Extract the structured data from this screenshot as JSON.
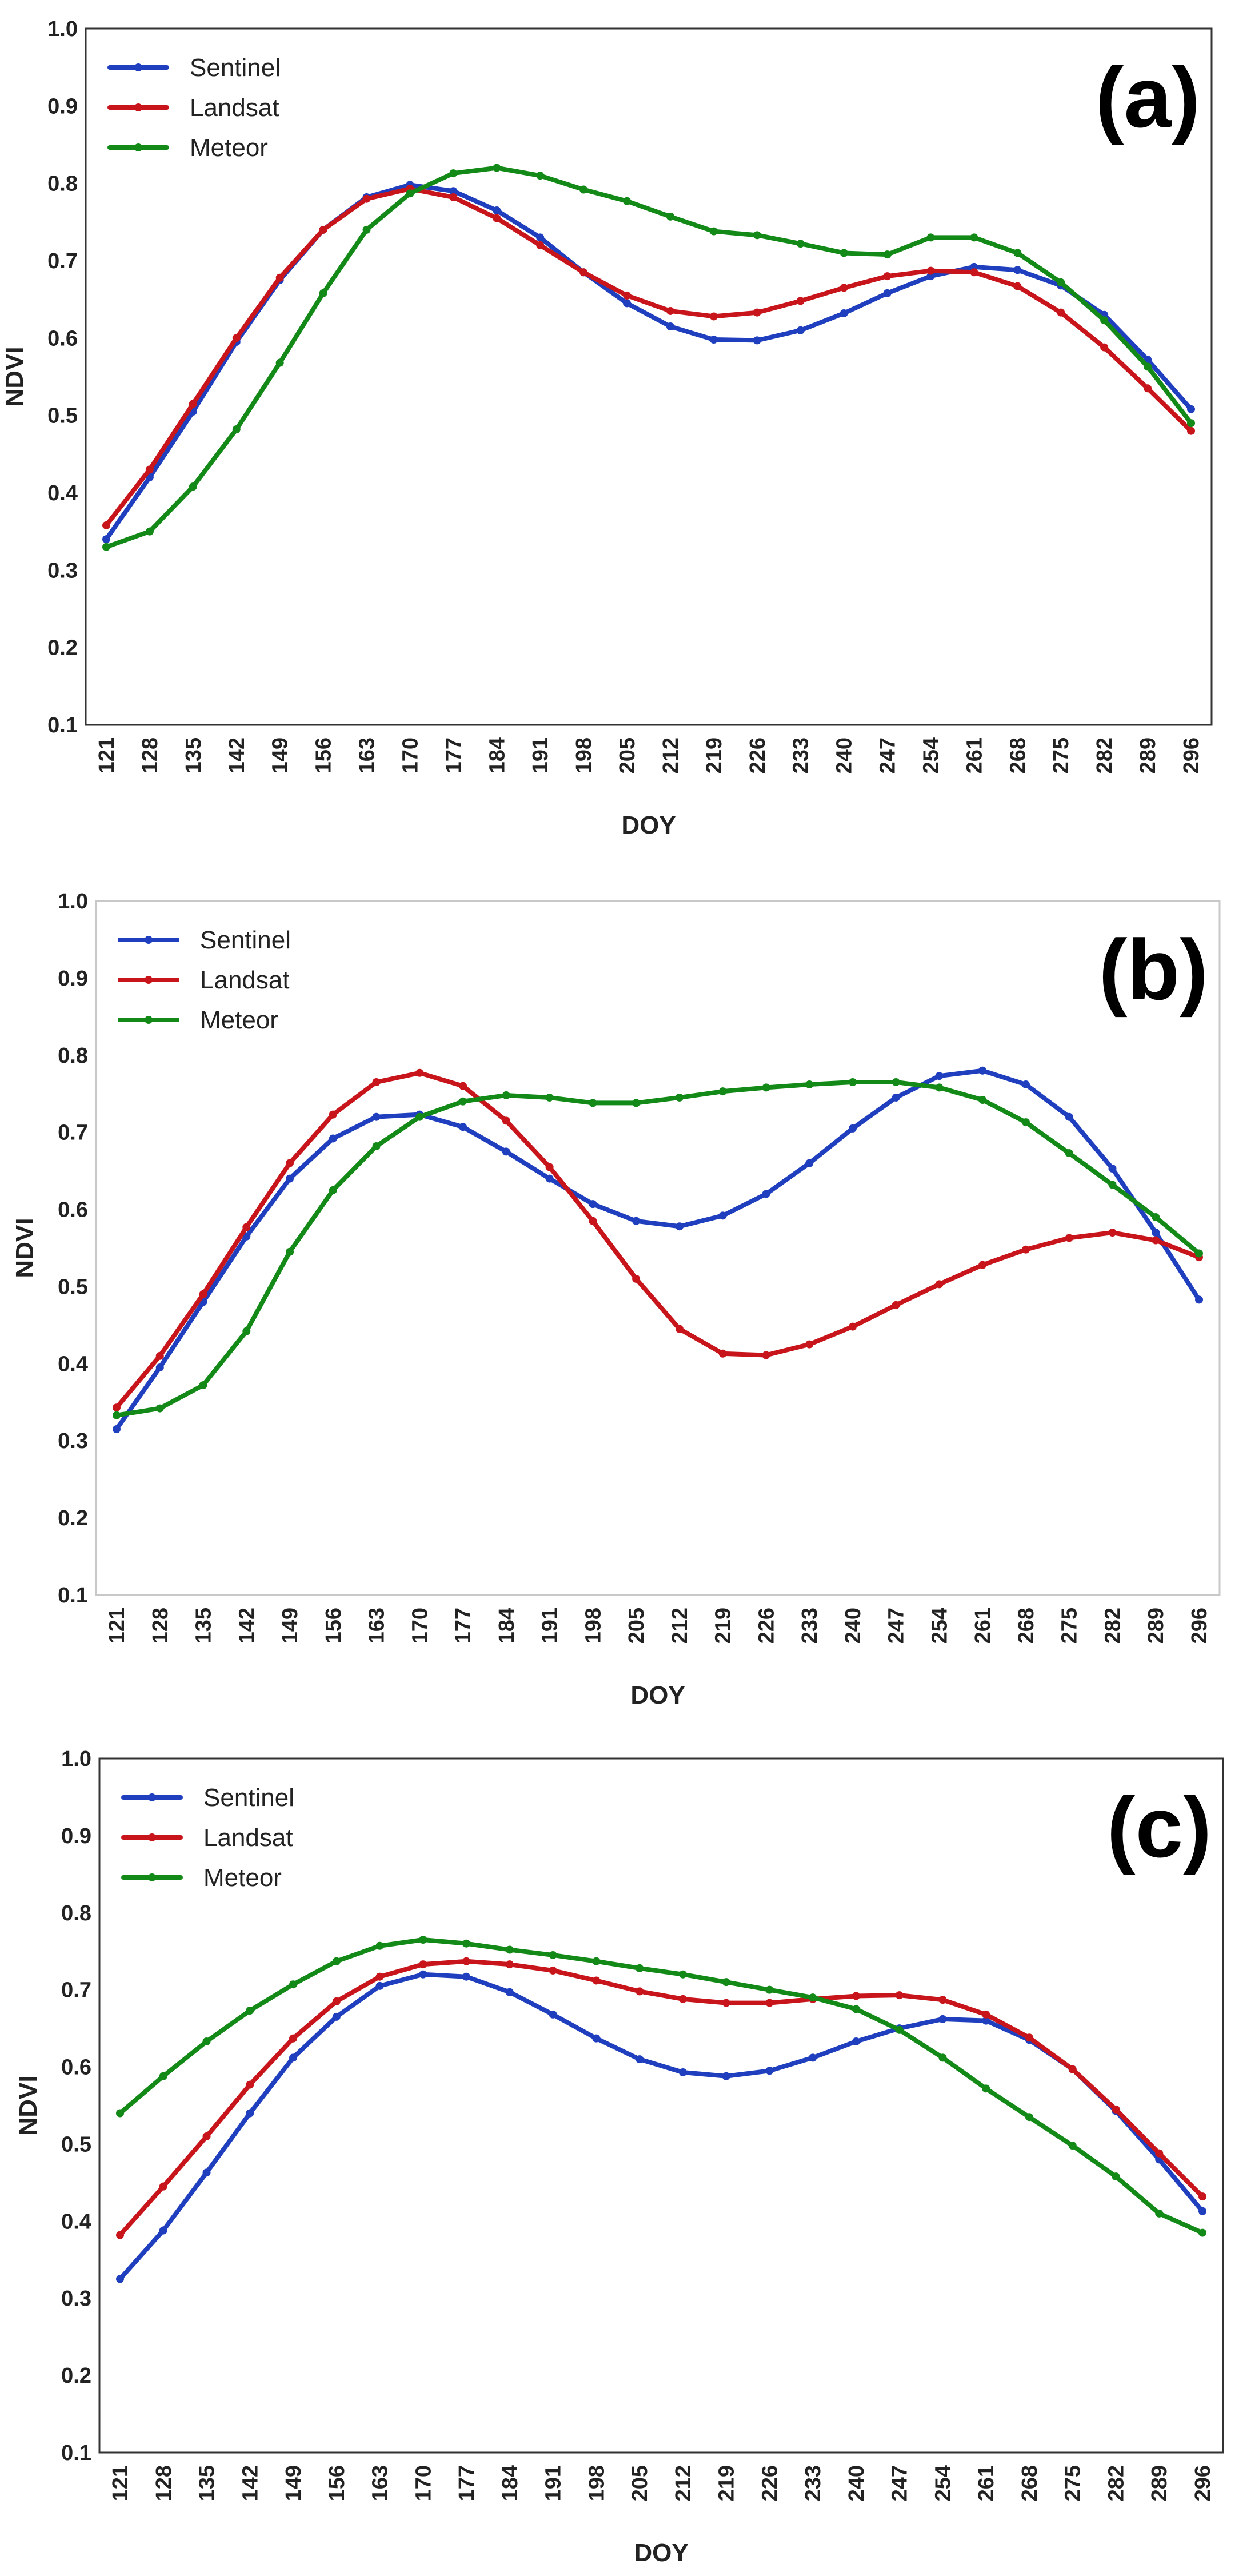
{
  "colors": {
    "Sentinel": "#1f3fbf",
    "Landsat": "#c8151b",
    "Meteor": "#138a18",
    "axis": "#222222",
    "text": "#222222"
  },
  "chart_data": [
    {
      "type": "line",
      "panel_label": "(a)",
      "xlabel": "DOY",
      "ylabel": "NDVI",
      "categories": [
        "121",
        "128",
        "135",
        "142",
        "149",
        "156",
        "163",
        "170",
        "177",
        "184",
        "191",
        "198",
        "205",
        "212",
        "219",
        "226",
        "233",
        "240",
        "247",
        "254",
        "261",
        "268",
        "275",
        "282",
        "289",
        "296"
      ],
      "ylim": [
        0.1,
        1.0
      ],
      "yticks": [
        "0.1",
        "0.2",
        "0.3",
        "0.4",
        "0.5",
        "0.6",
        "0.7",
        "0.8",
        "0.9",
        "1.0"
      ],
      "legend_position": "top-left",
      "series": [
        {
          "name": "Sentinel",
          "values": [
            0.34,
            0.42,
            0.505,
            0.595,
            0.675,
            0.74,
            0.782,
            0.798,
            0.79,
            0.765,
            0.73,
            0.685,
            0.645,
            0.615,
            0.598,
            0.597,
            0.61,
            0.632,
            0.658,
            0.68,
            0.692,
            0.688,
            0.668,
            0.63,
            0.572,
            0.508
          ]
        },
        {
          "name": "Landsat",
          "values": [
            0.358,
            0.43,
            0.515,
            0.6,
            0.678,
            0.74,
            0.78,
            0.793,
            0.782,
            0.755,
            0.72,
            0.685,
            0.655,
            0.635,
            0.628,
            0.633,
            0.648,
            0.665,
            0.68,
            0.687,
            0.685,
            0.667,
            0.633,
            0.588,
            0.535,
            0.48
          ]
        },
        {
          "name": "Meteor",
          "values": [
            0.33,
            0.35,
            0.408,
            0.482,
            0.568,
            0.658,
            0.74,
            0.787,
            0.813,
            0.82,
            0.81,
            0.792,
            0.777,
            0.757,
            0.738,
            0.733,
            0.722,
            0.71,
            0.708,
            0.73,
            0.73,
            0.71,
            0.672,
            0.623,
            0.563,
            0.49
          ]
        }
      ]
    },
    {
      "type": "line",
      "panel_label": "(b)",
      "xlabel": "DOY",
      "ylabel": "NDVI",
      "categories": [
        "121",
        "128",
        "135",
        "142",
        "149",
        "156",
        "163",
        "170",
        "177",
        "184",
        "191",
        "198",
        "205",
        "212",
        "219",
        "226",
        "233",
        "240",
        "247",
        "254",
        "261",
        "268",
        "275",
        "282",
        "289",
        "296"
      ],
      "ylim": [
        0.1,
        1.0
      ],
      "yticks": [
        "0.1",
        "0.2",
        "0.3",
        "0.4",
        "0.5",
        "0.6",
        "0.7",
        "0.8",
        "0.9",
        "1.0"
      ],
      "legend_position": "top-left",
      "series": [
        {
          "name": "Sentinel",
          "values": [
            0.315,
            0.395,
            0.48,
            0.565,
            0.64,
            0.692,
            0.72,
            0.723,
            0.707,
            0.675,
            0.64,
            0.607,
            0.585,
            0.578,
            0.592,
            0.62,
            0.66,
            0.705,
            0.745,
            0.773,
            0.78,
            0.762,
            0.72,
            0.653,
            0.57,
            0.483
          ]
        },
        {
          "name": "Landsat",
          "values": [
            0.343,
            0.41,
            0.49,
            0.577,
            0.66,
            0.723,
            0.765,
            0.777,
            0.76,
            0.715,
            0.655,
            0.585,
            0.51,
            0.445,
            0.413,
            0.411,
            0.425,
            0.448,
            0.476,
            0.503,
            0.528,
            0.548,
            0.563,
            0.57,
            0.56,
            0.538
          ]
        },
        {
          "name": "Meteor",
          "values": [
            0.333,
            0.342,
            0.372,
            0.442,
            0.545,
            0.625,
            0.682,
            0.72,
            0.74,
            0.748,
            0.745,
            0.738,
            0.738,
            0.745,
            0.753,
            0.758,
            0.762,
            0.765,
            0.765,
            0.758,
            0.742,
            0.713,
            0.673,
            0.632,
            0.59,
            0.543
          ]
        }
      ]
    },
    {
      "type": "line",
      "panel_label": "(c)",
      "xlabel": "DOY",
      "ylabel": "NDVI",
      "categories": [
        "121",
        "128",
        "135",
        "142",
        "149",
        "156",
        "163",
        "170",
        "177",
        "184",
        "191",
        "198",
        "205",
        "212",
        "219",
        "226",
        "233",
        "240",
        "247",
        "254",
        "261",
        "268",
        "275",
        "282",
        "289",
        "296"
      ],
      "ylim": [
        0.1,
        1.0
      ],
      "yticks": [
        "0.1",
        "0.2",
        "0.3",
        "0.4",
        "0.5",
        "0.6",
        "0.7",
        "0.8",
        "0.9",
        "1.0"
      ],
      "legend_position": "top-left",
      "series": [
        {
          "name": "Sentinel",
          "values": [
            0.325,
            0.388,
            0.463,
            0.54,
            0.612,
            0.665,
            0.705,
            0.72,
            0.717,
            0.697,
            0.668,
            0.637,
            0.61,
            0.593,
            0.588,
            0.595,
            0.612,
            0.633,
            0.65,
            0.662,
            0.66,
            0.635,
            0.597,
            0.543,
            0.48,
            0.413
          ]
        },
        {
          "name": "Landsat",
          "values": [
            0.382,
            0.445,
            0.51,
            0.577,
            0.637,
            0.685,
            0.717,
            0.733,
            0.737,
            0.733,
            0.725,
            0.712,
            0.698,
            0.688,
            0.683,
            0.683,
            0.688,
            0.692,
            0.693,
            0.687,
            0.668,
            0.638,
            0.597,
            0.545,
            0.488,
            0.432
          ]
        },
        {
          "name": "Meteor",
          "values": [
            0.54,
            0.588,
            0.633,
            0.673,
            0.707,
            0.737,
            0.757,
            0.765,
            0.76,
            0.752,
            0.745,
            0.737,
            0.728,
            0.72,
            0.71,
            0.7,
            0.69,
            0.675,
            0.648,
            0.612,
            0.572,
            0.535,
            0.498,
            0.458,
            0.41,
            0.385
          ]
        }
      ]
    }
  ]
}
